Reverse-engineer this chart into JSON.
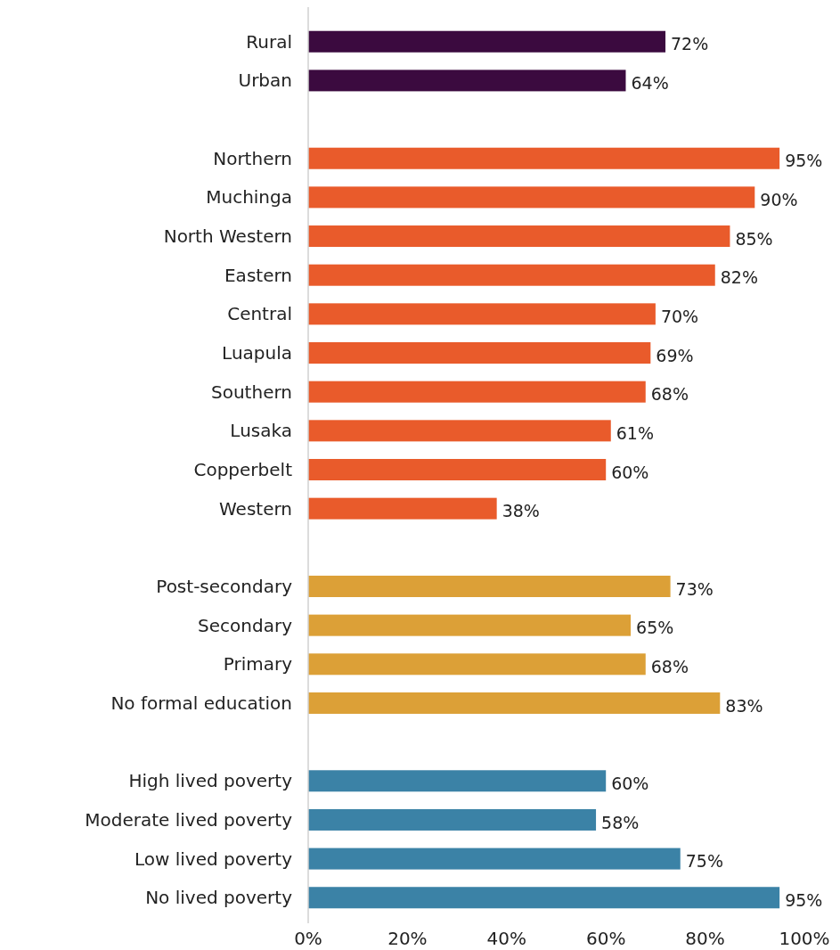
{
  "chart_data": {
    "type": "bar",
    "orientation": "horizontal",
    "categories": [
      "Rural",
      "Urban",
      null,
      "Northern",
      "Muchinga",
      "North Western",
      "Eastern",
      "Central",
      "Luapula",
      "Southern",
      "Lusaka",
      "Copperbelt",
      "Western",
      null,
      "Post-secondary",
      "Secondary",
      "Primary",
      "No formal education",
      null,
      "High lived poverty",
      "Moderate lived poverty",
      "Low lived poverty",
      "No lived poverty"
    ],
    "series": [
      {
        "color": "#3b0a3f",
        "values": [
          72,
          64,
          null,
          null,
          null,
          null,
          null,
          null,
          null,
          null,
          null,
          null,
          null,
          null,
          null,
          null,
          null,
          null,
          null,
          null,
          null,
          null,
          null
        ],
        "value_labels": [
          "72%",
          "64%",
          null,
          null,
          null,
          null,
          null,
          null,
          null,
          null,
          null,
          null,
          null,
          null,
          null,
          null,
          null,
          null,
          null,
          null,
          null,
          null,
          null
        ]
      },
      {
        "color": "#e95b2b",
        "values": [
          null,
          null,
          null,
          95,
          90,
          85,
          82,
          70,
          69,
          68,
          61,
          60,
          38,
          null,
          null,
          null,
          null,
          null,
          null,
          null,
          null,
          null,
          null
        ],
        "value_labels": [
          null,
          null,
          null,
          "95%",
          "90%",
          "85%",
          "82%",
          "70%",
          "69%",
          "68%",
          "61%",
          "60%",
          "38%",
          null,
          null,
          null,
          null,
          null,
          null,
          null,
          null,
          null,
          null
        ]
      },
      {
        "color": "#dca037",
        "values": [
          null,
          null,
          null,
          null,
          null,
          null,
          null,
          null,
          null,
          null,
          null,
          null,
          null,
          null,
          73,
          65,
          68,
          83,
          null,
          null,
          null,
          null,
          null
        ],
        "value_labels": [
          null,
          null,
          null,
          null,
          null,
          null,
          null,
          null,
          null,
          null,
          null,
          null,
          null,
          null,
          "73%",
          "65%",
          "68%",
          "83%",
          null,
          null,
          null,
          null,
          null
        ]
      },
      {
        "color": "#3b82a6",
        "values": [
          null,
          null,
          null,
          null,
          null,
          null,
          null,
          null,
          null,
          null,
          null,
          null,
          null,
          null,
          null,
          null,
          null,
          null,
          null,
          60,
          58,
          75,
          95
        ],
        "value_labels": [
          null,
          null,
          null,
          null,
          null,
          null,
          null,
          null,
          null,
          null,
          null,
          null,
          null,
          null,
          null,
          null,
          null,
          null,
          null,
          "60%",
          "58%",
          "75%",
          "95%"
        ]
      }
    ],
    "xlim": [
      0,
      100
    ],
    "xticks": [
      {
        "value": 0,
        "label": "0%"
      },
      {
        "value": 20,
        "label": "20%"
      },
      {
        "value": 40,
        "label": "40%"
      },
      {
        "value": 60,
        "label": "60%"
      },
      {
        "value": 80,
        "label": "80%"
      },
      {
        "value": 100,
        "label": "100%"
      }
    ],
    "grid": false
  }
}
